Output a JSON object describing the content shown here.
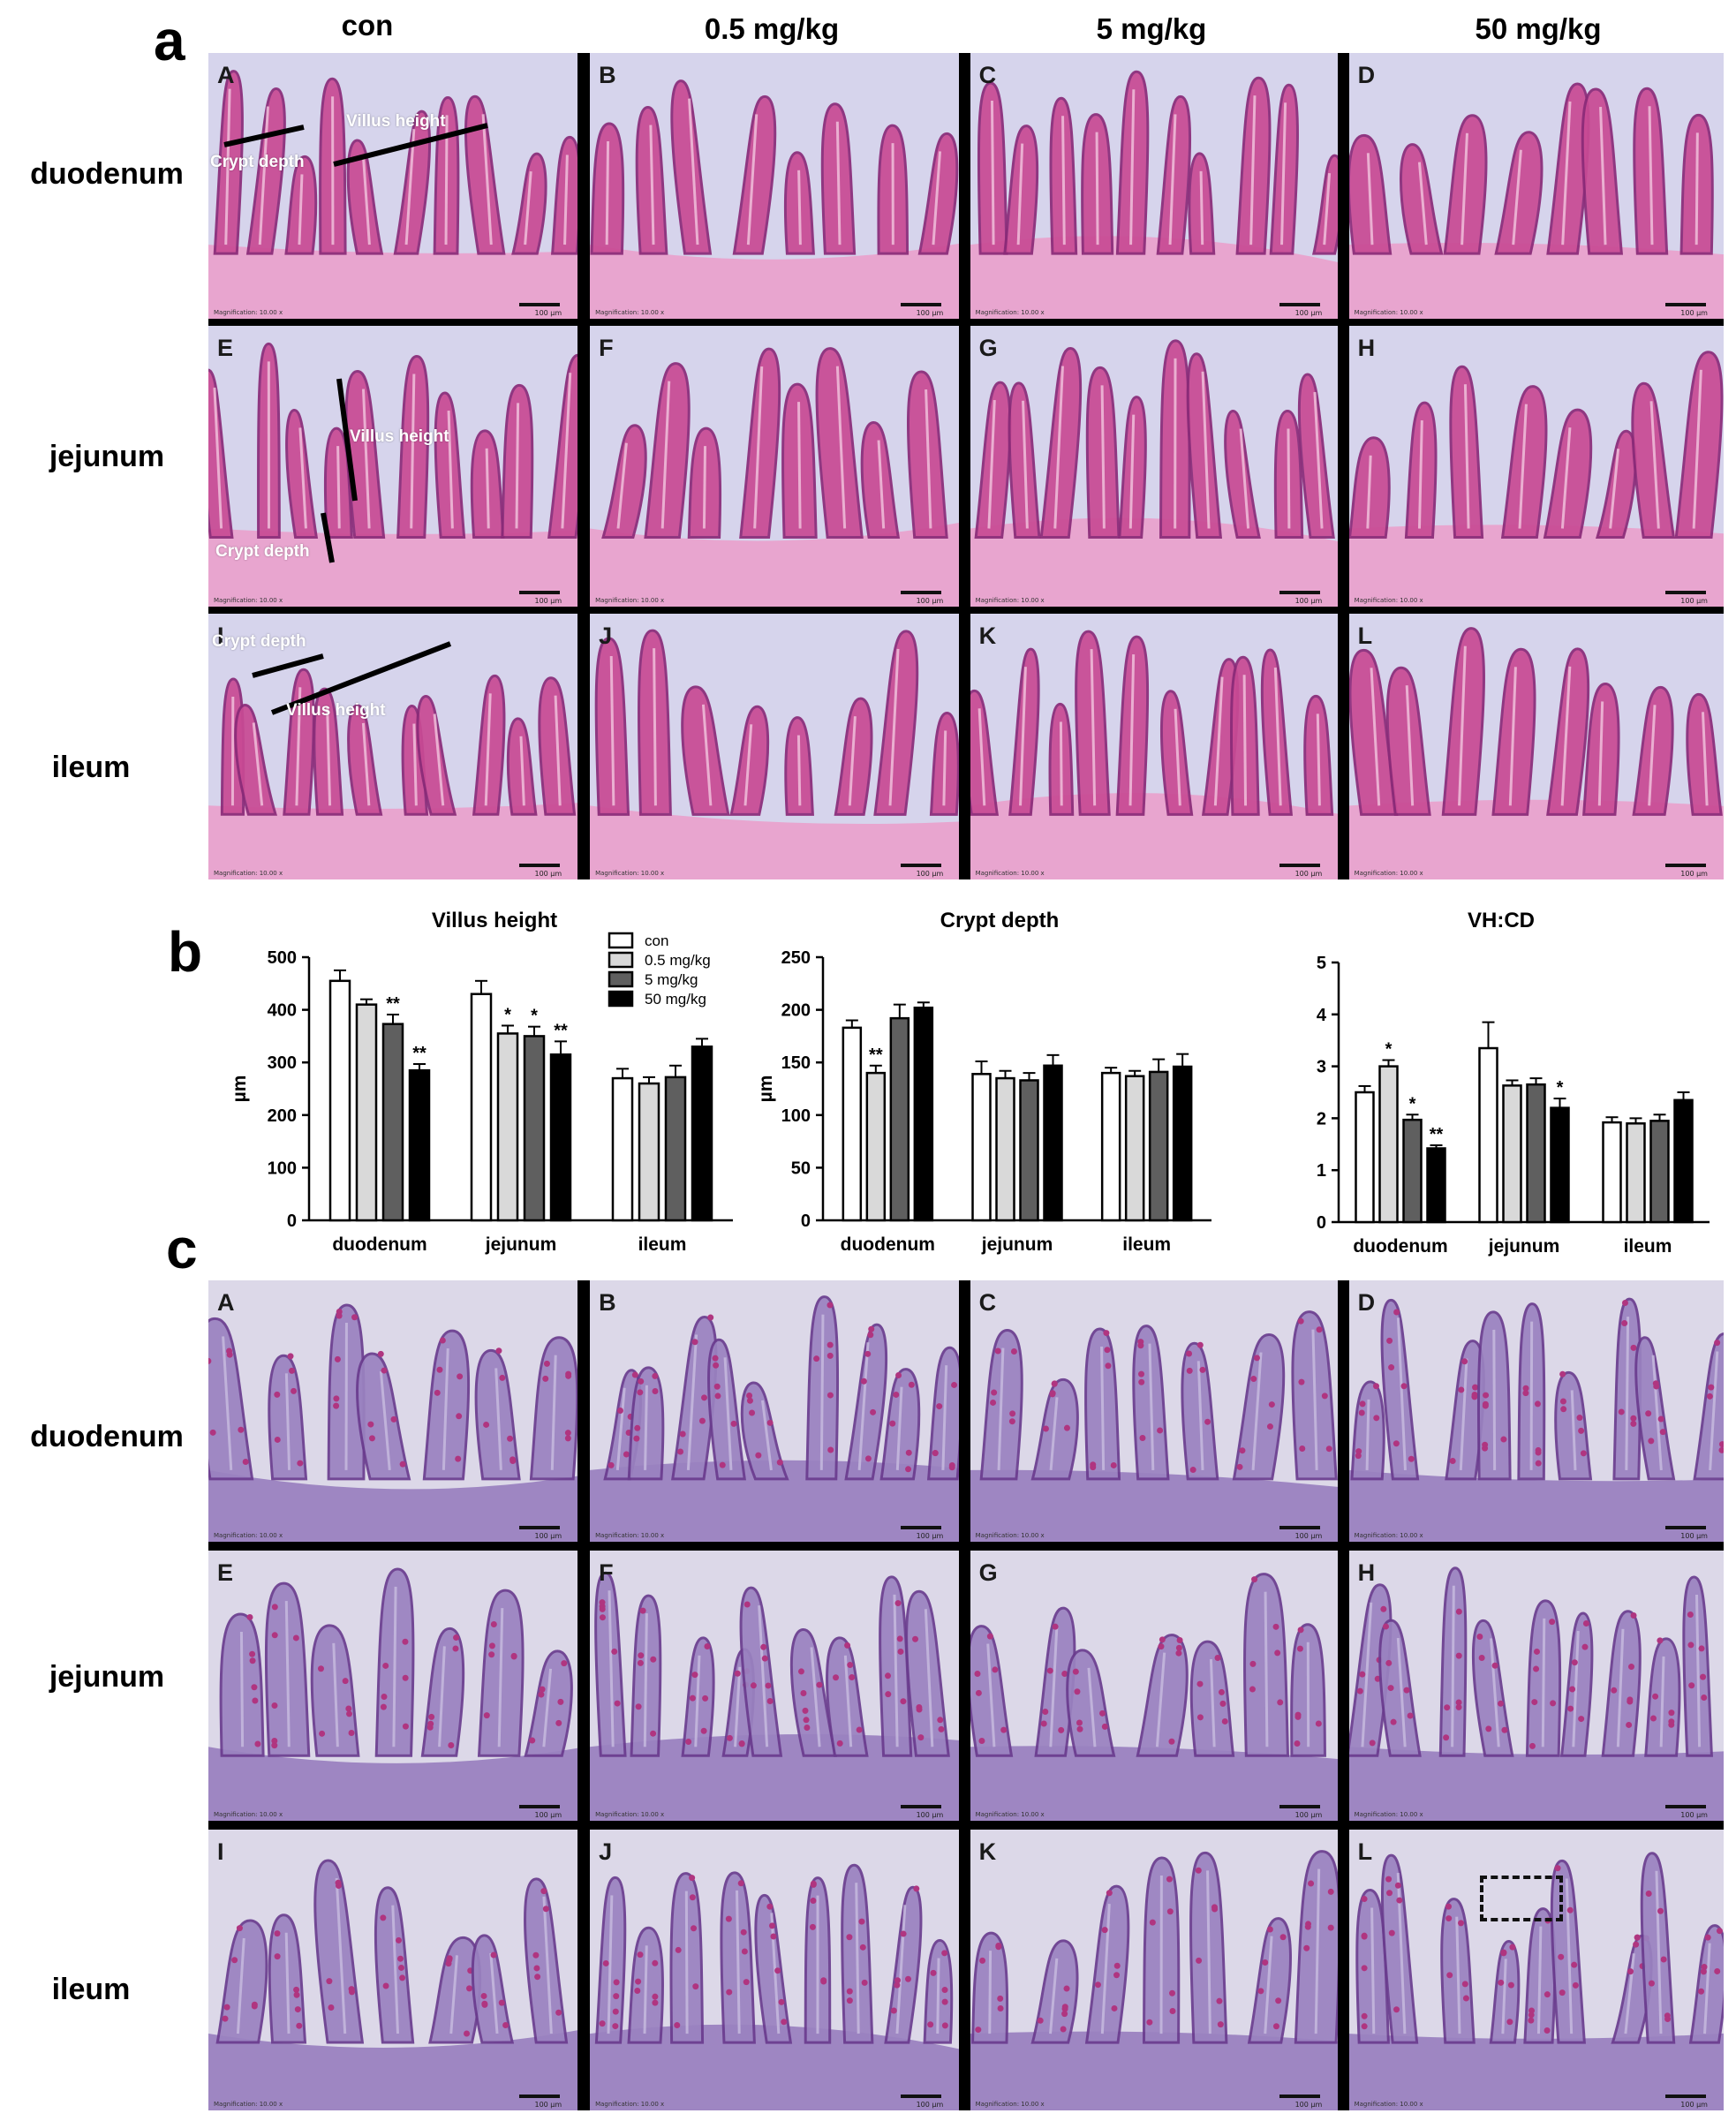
{
  "panel_labels": {
    "a": "a",
    "b": "b",
    "c": "c"
  },
  "columns": [
    "con",
    "0.5 mg/kg",
    "5 mg/kg",
    "50 mg/kg"
  ],
  "rows": [
    "duodenum",
    "jejunum",
    "ileum"
  ],
  "tile_letters": [
    "A",
    "B",
    "C",
    "D",
    "E",
    "F",
    "G",
    "H",
    "I",
    "J",
    "K",
    "L"
  ],
  "he_annotations": {
    "villus_height": "Villus height",
    "crypt_depth": "Crypt depth"
  },
  "micrograph": {
    "scale_text": "100 μm",
    "mag_text": "Magnification: 10.00 x",
    "he_colors": {
      "bg": "#d6d4ec",
      "tissue": "#c84a94",
      "dark": "#8a2a78",
      "light": "#e9a2cd"
    },
    "pas_colors": {
      "bg": "#dcd8e8",
      "tissue": "#9a82c0",
      "dark": "#6a3c8e",
      "goblet": "#b03580"
    }
  },
  "chart_data": [
    {
      "type": "bar",
      "title": "Villus height",
      "ylabel": "µm",
      "xlabel": "",
      "ylim": [
        0,
        500
      ],
      "yticks": [
        0,
        100,
        200,
        300,
        400,
        500
      ],
      "categories": [
        "duodenum",
        "jejunum",
        "ileum"
      ],
      "series": [
        {
          "name": "con",
          "color": "#ffffff",
          "values": [
            455,
            430,
            270
          ],
          "errors": [
            20,
            25,
            18
          ],
          "sig": [
            "",
            "",
            ""
          ]
        },
        {
          "name": "0.5 mg/kg",
          "color": "#d9d9d9",
          "values": [
            410,
            355,
            260
          ],
          "errors": [
            10,
            15,
            12
          ],
          "sig": [
            "",
            "*",
            ""
          ]
        },
        {
          "name": "5 mg/kg",
          "color": "#5f5f5f",
          "values": [
            373,
            350,
            272
          ],
          "errors": [
            18,
            18,
            22
          ],
          "sig": [
            "**",
            "*",
            ""
          ]
        },
        {
          "name": "50 mg/kg",
          "color": "#000000",
          "values": [
            285,
            315,
            330
          ],
          "errors": [
            12,
            25,
            15
          ],
          "sig": [
            "**",
            "**",
            ""
          ]
        }
      ],
      "legend": "top-right"
    },
    {
      "type": "bar",
      "title": "Crypt depth",
      "ylabel": "µm",
      "xlabel": "",
      "ylim": [
        0,
        250
      ],
      "yticks": [
        0,
        50,
        100,
        150,
        200,
        250
      ],
      "categories": [
        "duodenum",
        "jejunum",
        "ileum"
      ],
      "series": [
        {
          "name": "con",
          "color": "#ffffff",
          "values": [
            183,
            139,
            140
          ],
          "errors": [
            7,
            12,
            5
          ],
          "sig": [
            "",
            "",
            ""
          ]
        },
        {
          "name": "0.5 mg/kg",
          "color": "#d9d9d9",
          "values": [
            140,
            135,
            137
          ],
          "errors": [
            7,
            7,
            5
          ],
          "sig": [
            "**",
            "",
            ""
          ]
        },
        {
          "name": "5 mg/kg",
          "color": "#5f5f5f",
          "values": [
            192,
            133,
            141
          ],
          "errors": [
            13,
            7,
            12
          ],
          "sig": [
            "",
            "",
            ""
          ]
        },
        {
          "name": "50 mg/kg",
          "color": "#000000",
          "values": [
            202,
            147,
            146
          ],
          "errors": [
            5,
            10,
            12
          ],
          "sig": [
            "",
            "",
            ""
          ]
        }
      ]
    },
    {
      "type": "bar",
      "title": "VH:CD",
      "ylabel": "",
      "xlabel": "",
      "ylim": [
        0,
        5
      ],
      "yticks": [
        0,
        1,
        2,
        3,
        4,
        5
      ],
      "categories": [
        "duodenum",
        "jejunum",
        "ileum"
      ],
      "series": [
        {
          "name": "con",
          "color": "#ffffff",
          "values": [
            2.5,
            3.35,
            1.92
          ],
          "errors": [
            0.12,
            0.5,
            0.1
          ],
          "sig": [
            "",
            "",
            ""
          ]
        },
        {
          "name": "0.5 mg/kg",
          "color": "#d9d9d9",
          "values": [
            3.0,
            2.63,
            1.9
          ],
          "errors": [
            0.12,
            0.1,
            0.1
          ],
          "sig": [
            "*",
            "",
            ""
          ]
        },
        {
          "name": "5 mg/kg",
          "color": "#5f5f5f",
          "values": [
            1.97,
            2.65,
            1.95
          ],
          "errors": [
            0.1,
            0.12,
            0.12
          ],
          "sig": [
            "*",
            "",
            ""
          ]
        },
        {
          "name": "50 mg/kg",
          "color": "#000000",
          "values": [
            1.42,
            2.2,
            2.35
          ],
          "errors": [
            0.06,
            0.18,
            0.15
          ],
          "sig": [
            "**",
            "*",
            ""
          ]
        }
      ]
    }
  ]
}
